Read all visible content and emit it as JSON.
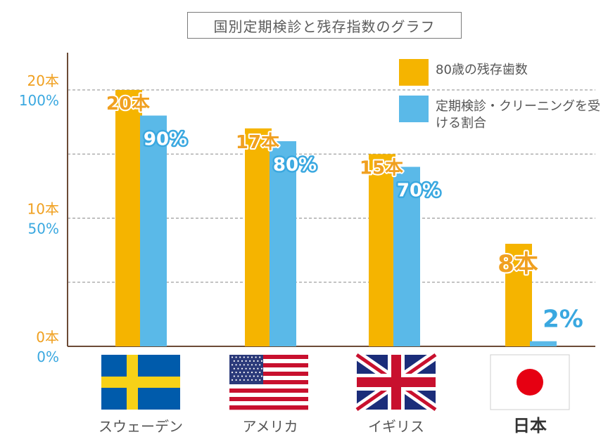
{
  "title": "国別定期検診と残存指数のグラフ",
  "legend": [
    {
      "label": "80歳の残存歯数",
      "color": "#f5b400"
    },
    {
      "label": "定期検診・クリーニングを受ける割合",
      "color": "#5ab9e8"
    }
  ],
  "colors": {
    "orange": "#f5b400",
    "blue": "#5ab9e8",
    "axis": "#6b4a36",
    "grid": "#8a8a8a",
    "tick_orange": "#f0a020",
    "tick_blue": "#3aa8e0"
  },
  "chart_data": {
    "type": "bar",
    "title": "国別定期検診と残存指数のグラフ",
    "categories": [
      "スウェーデン",
      "アメリカ",
      "イギリス",
      "日本"
    ],
    "series": [
      {
        "name": "80歳の残存歯数",
        "values": [
          20,
          17,
          15,
          8
        ],
        "labels": [
          "20本",
          "17本",
          "15本",
          "8本"
        ],
        "unit": "本"
      },
      {
        "name": "定期検診・クリーニングを受ける割合",
        "values": [
          90,
          80,
          70,
          2
        ],
        "labels": [
          "90%",
          "80%",
          "70%",
          "2%"
        ],
        "unit": "%"
      }
    ],
    "left_axis_ticks": [
      {
        "teeth": "0本",
        "percent": "0%",
        "value": 0
      },
      {
        "teeth": "10本",
        "percent": "50%",
        "value": 10
      },
      {
        "teeth": "20本",
        "percent": "100%",
        "value": 20
      }
    ],
    "ylim_teeth": [
      0,
      20
    ],
    "ylim_percent": [
      0,
      100
    ],
    "gridlines_teeth": [
      5,
      10,
      15,
      20
    ],
    "grid": true,
    "legend_position": "top-right",
    "flags": [
      "sweden-flag",
      "usa-flag",
      "uk-flag",
      "japan-flag"
    ]
  }
}
